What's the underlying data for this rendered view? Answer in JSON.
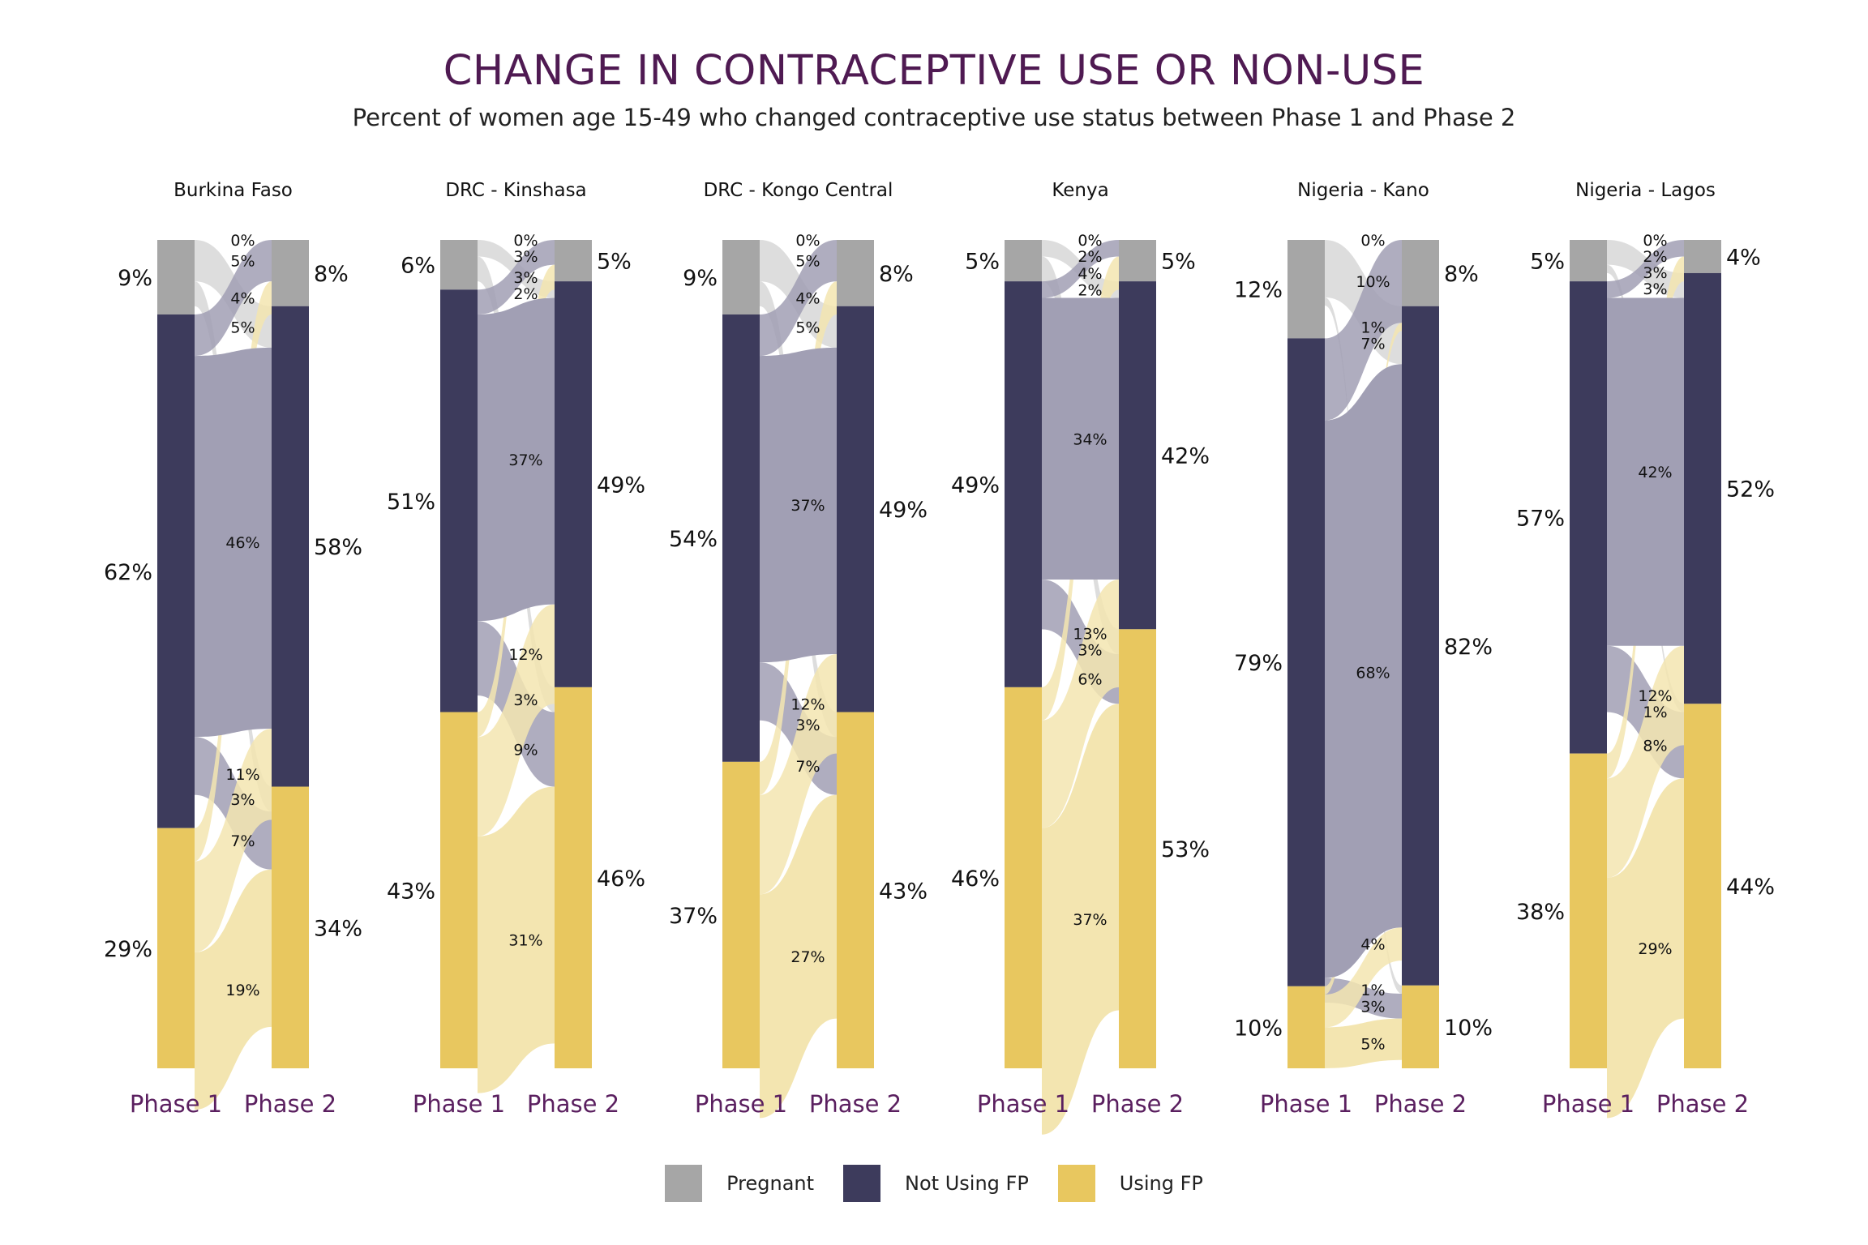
{
  "title": "CHANGE IN CONTRACEPTIVE USE OR NON-USE",
  "subtitle": "Percent of women age 15-49 who changed contraceptive use status between Phase 1 and Phase 2",
  "legend": [
    {
      "label": "Pregnant",
      "color": "#a6a6a6"
    },
    {
      "label": "Not Using FP",
      "color": "#3d3b5c"
    },
    {
      "label": "Using FP",
      "color": "#e8c75f"
    }
  ],
  "colors": {
    "pregnant": "#a6a6a6",
    "notusing": "#3d3b5c",
    "using": "#e8c75f",
    "flow_pregnant": "#d7d7d7",
    "flow_notusing": "#a19fb4",
    "flow_using": "#f3e5b0",
    "title": "#4f1a52",
    "axis_label": "#5a1f5f"
  },
  "chart_data": [
    {
      "type": "alluvial",
      "panel": "Burkina Faso",
      "axes": [
        "Phase 1",
        "Phase 2"
      ],
      "phase1": {
        "pregnant": "9%",
        "notusing": "62%",
        "using": "29%"
      },
      "phase2": {
        "pregnant": "8%",
        "notusing": "58%",
        "using": "34%"
      },
      "flows": [
        {
          "from": "pregnant",
          "to": "pregnant",
          "label": "0%"
        },
        {
          "from": "pregnant",
          "to": "notusing",
          "label": "5%"
        },
        {
          "from": "pregnant",
          "to": "using",
          "label": "3%"
        },
        {
          "from": "notusing",
          "to": "pregnant",
          "label": "5%"
        },
        {
          "from": "notusing",
          "to": "notusing",
          "label": "46%"
        },
        {
          "from": "notusing",
          "to": "using",
          "label": "7%"
        },
        {
          "from": "using",
          "to": "pregnant",
          "label": "4%"
        },
        {
          "from": "using",
          "to": "notusing",
          "label": "11%"
        },
        {
          "from": "using",
          "to": "using",
          "label": "19%"
        }
      ]
    },
    {
      "type": "alluvial",
      "panel": "DRC - Kinshasa",
      "axes": [
        "Phase 1",
        "Phase 2"
      ],
      "phase1": {
        "pregnant": "6%",
        "notusing": "51%",
        "using": "43%"
      },
      "phase2": {
        "pregnant": "5%",
        "notusing": "49%",
        "using": "46%"
      },
      "flows": [
        {
          "from": "pregnant",
          "to": "pregnant",
          "label": "0%"
        },
        {
          "from": "pregnant",
          "to": "notusing",
          "label": "2%"
        },
        {
          "from": "pregnant",
          "to": "using",
          "label": "3%"
        },
        {
          "from": "notusing",
          "to": "pregnant",
          "label": "3%"
        },
        {
          "from": "notusing",
          "to": "notusing",
          "label": "37%"
        },
        {
          "from": "notusing",
          "to": "using",
          "label": "9%"
        },
        {
          "from": "using",
          "to": "pregnant",
          "label": "3%"
        },
        {
          "from": "using",
          "to": "notusing",
          "label": "12%"
        },
        {
          "from": "using",
          "to": "using",
          "label": "31%"
        }
      ]
    },
    {
      "type": "alluvial",
      "panel": "DRC - Kongo Central",
      "axes": [
        "Phase 1",
        "Phase 2"
      ],
      "phase1": {
        "pregnant": "9%",
        "notusing": "54%",
        "using": "37%"
      },
      "phase2": {
        "pregnant": "8%",
        "notusing": "49%",
        "using": "43%"
      },
      "flows": [
        {
          "from": "pregnant",
          "to": "pregnant",
          "label": "0%"
        },
        {
          "from": "pregnant",
          "to": "notusing",
          "label": "5%"
        },
        {
          "from": "pregnant",
          "to": "using",
          "label": "3%"
        },
        {
          "from": "notusing",
          "to": "pregnant",
          "label": "5%"
        },
        {
          "from": "notusing",
          "to": "notusing",
          "label": "37%"
        },
        {
          "from": "notusing",
          "to": "using",
          "label": "7%"
        },
        {
          "from": "using",
          "to": "pregnant",
          "label": "4%"
        },
        {
          "from": "using",
          "to": "notusing",
          "label": "12%"
        },
        {
          "from": "using",
          "to": "using",
          "label": "27%"
        }
      ]
    },
    {
      "type": "alluvial",
      "panel": "Kenya",
      "axes": [
        "Phase 1",
        "Phase 2"
      ],
      "phase1": {
        "pregnant": "5%",
        "notusing": "49%",
        "using": "46%"
      },
      "phase2": {
        "pregnant": "5%",
        "notusing": "42%",
        "using": "53%"
      },
      "flows": [
        {
          "from": "pregnant",
          "to": "pregnant",
          "label": "0%"
        },
        {
          "from": "pregnant",
          "to": "notusing",
          "label": "2%"
        },
        {
          "from": "pregnant",
          "to": "using",
          "label": "3%"
        },
        {
          "from": "notusing",
          "to": "pregnant",
          "label": "2%"
        },
        {
          "from": "notusing",
          "to": "notusing",
          "label": "34%"
        },
        {
          "from": "notusing",
          "to": "using",
          "label": "6%"
        },
        {
          "from": "using",
          "to": "pregnant",
          "label": "4%"
        },
        {
          "from": "using",
          "to": "notusing",
          "label": "13%"
        },
        {
          "from": "using",
          "to": "using",
          "label": "37%"
        }
      ]
    },
    {
      "type": "alluvial",
      "panel": "Nigeria - Kano",
      "axes": [
        "Phase 1",
        "Phase 2"
      ],
      "phase1": {
        "pregnant": "12%",
        "notusing": "79%",
        "using": "10%"
      },
      "phase2": {
        "pregnant": "8%",
        "notusing": "82%",
        "using": "10%"
      },
      "flows": [
        {
          "from": "pregnant",
          "to": "pregnant",
          "label": "0%"
        },
        {
          "from": "pregnant",
          "to": "notusing",
          "label": "7%"
        },
        {
          "from": "pregnant",
          "to": "using",
          "label": "1%"
        },
        {
          "from": "notusing",
          "to": "pregnant",
          "label": "10%"
        },
        {
          "from": "notusing",
          "to": "notusing",
          "label": "68%"
        },
        {
          "from": "notusing",
          "to": "using",
          "label": "3%"
        },
        {
          "from": "using",
          "to": "pregnant",
          "label": "1%"
        },
        {
          "from": "using",
          "to": "notusing",
          "label": "4%"
        },
        {
          "from": "using",
          "to": "using",
          "label": "5%"
        }
      ]
    },
    {
      "type": "alluvial",
      "panel": "Nigeria - Lagos",
      "axes": [
        "Phase 1",
        "Phase 2"
      ],
      "phase1": {
        "pregnant": "5%",
        "notusing": "57%",
        "using": "38%"
      },
      "phase2": {
        "pregnant": "4%",
        "notusing": "52%",
        "using": "44%"
      },
      "flows": [
        {
          "from": "pregnant",
          "to": "pregnant",
          "label": "0%"
        },
        {
          "from": "pregnant",
          "to": "notusing",
          "label": "3%"
        },
        {
          "from": "pregnant",
          "to": "using",
          "label": "1%"
        },
        {
          "from": "notusing",
          "to": "pregnant",
          "label": "2%"
        },
        {
          "from": "notusing",
          "to": "notusing",
          "label": "42%"
        },
        {
          "from": "notusing",
          "to": "using",
          "label": "8%"
        },
        {
          "from": "using",
          "to": "pregnant",
          "label": "3%"
        },
        {
          "from": "using",
          "to": "notusing",
          "label": "12%"
        },
        {
          "from": "using",
          "to": "using",
          "label": "29%"
        }
      ]
    }
  ]
}
